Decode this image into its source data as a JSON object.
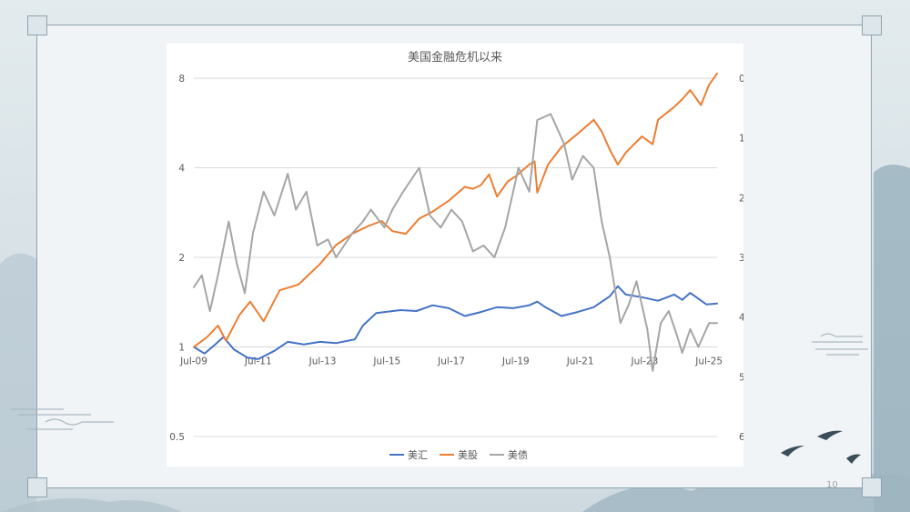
{
  "slide": {
    "page_number": "10"
  },
  "colors": {
    "background": "#dde6ea",
    "panel": "#f1f4f6",
    "usd": "#4472C4",
    "stocks": "#ED7D31",
    "bonds": "#A5A5A5",
    "axis_text": "#595959",
    "grid": "#d9d9d9"
  },
  "chart_data": {
    "type": "line",
    "title": "美国金融危机以来",
    "left_axis": {
      "scale": "log2",
      "ticks": [
        0.5,
        1,
        2,
        4,
        8
      ],
      "tick_labels": [
        "0.5",
        "1",
        "2",
        "4",
        "8"
      ],
      "range": [
        0.5,
        8
      ]
    },
    "right_axis": {
      "inverted": true,
      "ticks": [
        0,
        1,
        2,
        3,
        4,
        5,
        6
      ],
      "tick_labels": [
        "0",
        "1",
        "2",
        "3",
        "4",
        "5",
        "6"
      ],
      "range": [
        0,
        6
      ]
    },
    "x_axis": {
      "range": [
        "2009-07",
        "2025-10"
      ],
      "tick_labels": [
        "Jul-09",
        "Jul-11",
        "Jul-13",
        "Jul-15",
        "Jul-17",
        "Jul-19",
        "Jul-21",
        "Jul-23",
        "Jul-25"
      ],
      "tick_dates": [
        "2009-07",
        "2011-07",
        "2013-07",
        "2015-07",
        "2017-07",
        "2019-07",
        "2021-07",
        "2023-07",
        "2025-07"
      ]
    },
    "grid": "horizontal-left-axis",
    "legend": {
      "position": "bottom",
      "entries": [
        "美汇",
        "美股",
        "美债"
      ]
    },
    "series": [
      {
        "name": "美汇",
        "axis": "left",
        "color": "#4472C4",
        "x": [
          "2009-07",
          "2009-11",
          "2010-03",
          "2010-06",
          "2010-10",
          "2011-03",
          "2011-07",
          "2012-01",
          "2012-06",
          "2012-12",
          "2013-06",
          "2013-12",
          "2014-07",
          "2014-10",
          "2015-03",
          "2015-12",
          "2016-06",
          "2016-12",
          "2017-06",
          "2017-12",
          "2018-06",
          "2018-12",
          "2019-06",
          "2019-12",
          "2020-03",
          "2020-06",
          "2020-12",
          "2021-06",
          "2021-12",
          "2022-06",
          "2022-09",
          "2022-12",
          "2023-06",
          "2023-12",
          "2024-06",
          "2024-09",
          "2024-12",
          "2025-06",
          "2025-10"
        ],
        "values": [
          1.0,
          0.95,
          1.02,
          1.08,
          0.98,
          0.92,
          0.91,
          0.97,
          1.04,
          1.02,
          1.04,
          1.03,
          1.06,
          1.18,
          1.3,
          1.33,
          1.32,
          1.38,
          1.35,
          1.27,
          1.31,
          1.36,
          1.35,
          1.38,
          1.42,
          1.36,
          1.27,
          1.31,
          1.36,
          1.48,
          1.6,
          1.5,
          1.47,
          1.43,
          1.5,
          1.44,
          1.52,
          1.39,
          1.4
        ]
      },
      {
        "name": "美股",
        "axis": "left",
        "color": "#ED7D31",
        "x": [
          "2009-07",
          "2009-12",
          "2010-04",
          "2010-07",
          "2010-12",
          "2011-04",
          "2011-09",
          "2012-03",
          "2012-10",
          "2013-06",
          "2013-12",
          "2014-06",
          "2014-12",
          "2015-05",
          "2015-09",
          "2016-02",
          "2016-07",
          "2016-12",
          "2017-06",
          "2017-12",
          "2018-03",
          "2018-06",
          "2018-09",
          "2018-12",
          "2019-04",
          "2019-07",
          "2019-12",
          "2020-02",
          "2020-03",
          "2020-07",
          "2020-12",
          "2021-06",
          "2021-12",
          "2022-03",
          "2022-06",
          "2022-09",
          "2022-12",
          "2023-06",
          "2023-10",
          "2023-12",
          "2024-06",
          "2024-09",
          "2024-12",
          "2025-04",
          "2025-07",
          "2025-10"
        ],
        "values": [
          1.0,
          1.08,
          1.18,
          1.05,
          1.28,
          1.42,
          1.22,
          1.55,
          1.62,
          1.9,
          2.2,
          2.4,
          2.55,
          2.65,
          2.45,
          2.4,
          2.7,
          2.85,
          3.1,
          3.45,
          3.4,
          3.5,
          3.8,
          3.2,
          3.6,
          3.75,
          4.1,
          4.2,
          3.3,
          4.1,
          4.7,
          5.2,
          5.8,
          5.3,
          4.6,
          4.1,
          4.5,
          5.1,
          4.8,
          5.8,
          6.4,
          6.8,
          7.3,
          6.5,
          7.6,
          8.3
        ]
      },
      {
        "name": "美债",
        "axis": "right",
        "color": "#A5A5A5",
        "x": [
          "2009-07",
          "2009-10",
          "2010-01",
          "2010-04",
          "2010-08",
          "2010-11",
          "2011-02",
          "2011-05",
          "2011-09",
          "2012-01",
          "2012-06",
          "2012-09",
          "2013-01",
          "2013-05",
          "2013-09",
          "2013-12",
          "2014-06",
          "2014-10",
          "2015-01",
          "2015-06",
          "2015-09",
          "2016-01",
          "2016-07",
          "2016-11",
          "2017-03",
          "2017-07",
          "2017-11",
          "2018-03",
          "2018-07",
          "2018-11",
          "2019-03",
          "2019-08",
          "2019-12",
          "2020-03",
          "2020-08",
          "2021-01",
          "2021-04",
          "2021-08",
          "2021-12",
          "2022-03",
          "2022-06",
          "2022-10",
          "2023-01",
          "2023-04",
          "2023-08",
          "2023-10",
          "2024-01",
          "2024-04",
          "2024-07",
          "2024-09",
          "2024-12",
          "2025-03",
          "2025-07",
          "2025-10"
        ],
        "values": [
          3.5,
          3.3,
          3.9,
          3.3,
          2.4,
          3.1,
          3.6,
          2.6,
          1.9,
          2.3,
          1.6,
          2.2,
          1.9,
          2.8,
          2.7,
          3.0,
          2.6,
          2.4,
          2.2,
          2.5,
          2.2,
          1.9,
          1.5,
          2.3,
          2.5,
          2.2,
          2.4,
          2.9,
          2.8,
          3.0,
          2.5,
          1.5,
          1.9,
          0.7,
          0.6,
          1.1,
          1.7,
          1.3,
          1.5,
          2.4,
          3.0,
          4.1,
          3.8,
          3.4,
          4.2,
          4.9,
          4.1,
          3.9,
          4.3,
          4.6,
          4.2,
          4.5,
          4.1,
          4.1
        ]
      }
    ]
  }
}
